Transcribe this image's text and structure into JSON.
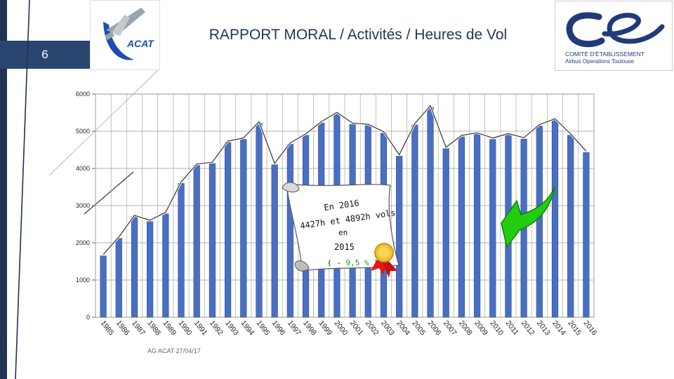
{
  "header": {
    "title": "RAPPORT MORAL / Activités / Heures de Vol",
    "page_number": "6",
    "logo_left_text": "ACAT",
    "logo_right_line1": "COMITÉ D'ÉTABLISSEMENT",
    "logo_right_line2": "Airbus Operations Toulouse"
  },
  "footer": {
    "text": "AG ACAT 27/04/17"
  },
  "colors": {
    "bar": "#4a6fc2",
    "bar_edge": "#2d4f9c",
    "accent": "#1f3352",
    "arrow": "#22cc11",
    "ribbon": "#e01818"
  },
  "icons": [
    "airplane-logo-icon",
    "ce-logo-icon",
    "green-arrow-icon",
    "award-ribbon-icon"
  ],
  "annotation": {
    "line1": "En 2016",
    "line2": "4427h et 4892h vols",
    "line3": "en",
    "line4": "2015",
    "line5_prefix": "( - ",
    "line5_value": "9,5 %",
    "line5_suffix": " )"
  },
  "chart_data": {
    "type": "bar",
    "title": "",
    "xlabel": "",
    "ylabel": "",
    "ylim": [
      0,
      6000
    ],
    "yticks": [
      0,
      1000,
      2000,
      3000,
      4000,
      5000,
      6000
    ],
    "grid": true,
    "categories": [
      "1985",
      "1986",
      "1987",
      "1988",
      "1989",
      "1990",
      "1991",
      "1992",
      "1993",
      "1994",
      "1995",
      "1996",
      "1997",
      "1998",
      "1999",
      "2000",
      "2001",
      "2002",
      "2003",
      "2004",
      "2005",
      "2006",
      "2007",
      "2008",
      "2009",
      "2010",
      "2011",
      "2012",
      "2013",
      "2014",
      "2015",
      "2016"
    ],
    "values": [
      1650,
      2120,
      2700,
      2570,
      2780,
      3600,
      4080,
      4130,
      4700,
      4780,
      5220,
      4100,
      4650,
      4890,
      5220,
      5470,
      5180,
      5150,
      4950,
      4330,
      5170,
      5650,
      4530,
      4850,
      4920,
      4780,
      4900,
      4790,
      5140,
      5300,
      4892,
      4427
    ]
  }
}
